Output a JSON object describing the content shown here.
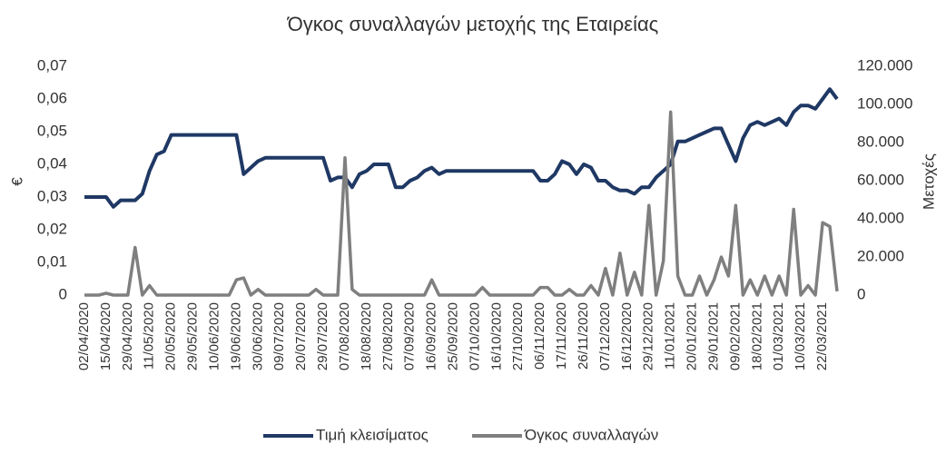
{
  "chart_data": {
    "type": "line",
    "title": "Όγκος συναλλαγών μετοχής της Εταιρείας",
    "ylabel": "€",
    "y2label": "Μετοχές",
    "categories": [
      "02/04/2020",
      null,
      null,
      "15/04/2020",
      null,
      null,
      "29/04/2020",
      null,
      null,
      "11/05/2020",
      null,
      null,
      "20/05/2020",
      null,
      null,
      "29/05/2020",
      null,
      null,
      "10/06/2020",
      null,
      null,
      "19/06/2020",
      null,
      null,
      "30/06/2020",
      null,
      null,
      "09/07/2020",
      null,
      null,
      "20/07/2020",
      null,
      null,
      "29/07/2020",
      null,
      null,
      "07/08/2020",
      null,
      null,
      "18/08/2020",
      null,
      null,
      "27/08/2020",
      null,
      null,
      "07/09/2020",
      null,
      null,
      "16/09/2020",
      null,
      null,
      "25/09/2020",
      null,
      null,
      "07/10/2020",
      null,
      null,
      "16/10/2020",
      null,
      null,
      "27/10/2020",
      null,
      null,
      "06/11/2020",
      null,
      null,
      "17/11/2020",
      null,
      null,
      "26/11/2020",
      null,
      null,
      "07/12/2020",
      null,
      null,
      "16/12/2020",
      null,
      null,
      "29/12/2020",
      null,
      null,
      "11/01/2021",
      null,
      null,
      "20/01/2021",
      null,
      null,
      "29/01/2021",
      null,
      null,
      "09/02/2021",
      null,
      null,
      "18/02/2021",
      null,
      null,
      "01/03/2021",
      null,
      null,
      "10/03/2021",
      null,
      null,
      "22/03/2021",
      null,
      null
    ],
    "series": [
      {
        "name": "Τιμή κλεισίματος",
        "color": "#1f3864",
        "values": [
          0.03,
          0.03,
          0.03,
          0.03,
          0.027,
          0.029,
          0.029,
          0.029,
          0.031,
          0.038,
          0.043,
          0.044,
          0.049,
          0.049,
          0.049,
          0.049,
          0.049,
          0.049,
          0.049,
          0.049,
          0.049,
          0.049,
          0.037,
          0.039,
          0.041,
          0.042,
          0.042,
          0.042,
          0.042,
          0.042,
          0.042,
          0.042,
          0.042,
          0.042,
          0.035,
          0.036,
          0.036,
          0.033,
          0.037,
          0.038,
          0.04,
          0.04,
          0.04,
          0.033,
          0.033,
          0.035,
          0.036,
          0.038,
          0.039,
          0.037,
          0.038,
          0.038,
          0.038,
          0.038,
          0.038,
          0.038,
          0.038,
          0.038,
          0.038,
          0.038,
          0.038,
          0.038,
          0.038,
          0.035,
          0.035,
          0.037,
          0.041,
          0.04,
          0.037,
          0.04,
          0.039,
          0.035,
          0.035,
          0.033,
          0.032,
          0.032,
          0.031,
          0.033,
          0.033,
          0.036,
          0.038,
          0.04,
          0.047,
          0.047,
          0.048,
          0.049,
          0.05,
          0.051,
          0.051,
          0.046,
          0.041,
          0.048,
          0.052,
          0.053,
          0.052,
          0.053,
          0.054,
          0.052,
          0.056,
          0.058,
          0.058,
          0.057,
          0.06,
          0.063,
          0.06
        ]
      },
      {
        "name": "Όγκος συναλλαγών",
        "color": "#7f7f7f",
        "axis": "y2",
        "values": [
          0,
          0,
          0,
          1000,
          0,
          0,
          0,
          25000,
          0,
          5000,
          0,
          0,
          0,
          0,
          0,
          0,
          0,
          0,
          0,
          0,
          0,
          8000,
          9000,
          0,
          3000,
          0,
          0,
          0,
          0,
          0,
          0,
          0,
          3000,
          0,
          0,
          0,
          72000,
          3000,
          0,
          0,
          0,
          0,
          0,
          0,
          0,
          0,
          0,
          0,
          8000,
          0,
          0,
          0,
          0,
          0,
          0,
          4000,
          0,
          0,
          0,
          0,
          0,
          0,
          0,
          4000,
          4000,
          0,
          0,
          3000,
          0,
          0,
          5000,
          0,
          14000,
          0,
          22000,
          0,
          12000,
          0,
          47000,
          0,
          18000,
          96000,
          10000,
          0,
          0,
          10000,
          0,
          8000,
          20000,
          10000,
          47000,
          0,
          8000,
          0,
          10000,
          0,
          10000,
          0,
          45000,
          0,
          5000,
          0,
          38000,
          36000,
          2000
        ]
      }
    ],
    "ylim": [
      0,
      0.07
    ],
    "yticks": [
      0,
      {
        "value": 0.01,
        "label": "0,01"
      },
      {
        "value": 0.02,
        "label": "0,02"
      },
      {
        "value": 0.03,
        "label": "0,03"
      },
      {
        "value": 0.04,
        "label": "0,04"
      },
      {
        "value": 0.05,
        "label": "0,05"
      },
      {
        "value": 0.06,
        "label": "0,06"
      },
      {
        "value": 0.07,
        "label": "0,07"
      }
    ],
    "y2lim": [
      0,
      120000
    ],
    "y2ticks": [
      0,
      {
        "value": 20000,
        "label": "20.000"
      },
      {
        "value": 40000,
        "label": "40.000"
      },
      {
        "value": 60000,
        "label": "60.000"
      },
      {
        "value": 80000,
        "label": "80.000"
      },
      {
        "value": 100000,
        "label": "100.000"
      },
      {
        "value": 120000,
        "label": "120.000"
      }
    ],
    "legend": "bottom"
  }
}
